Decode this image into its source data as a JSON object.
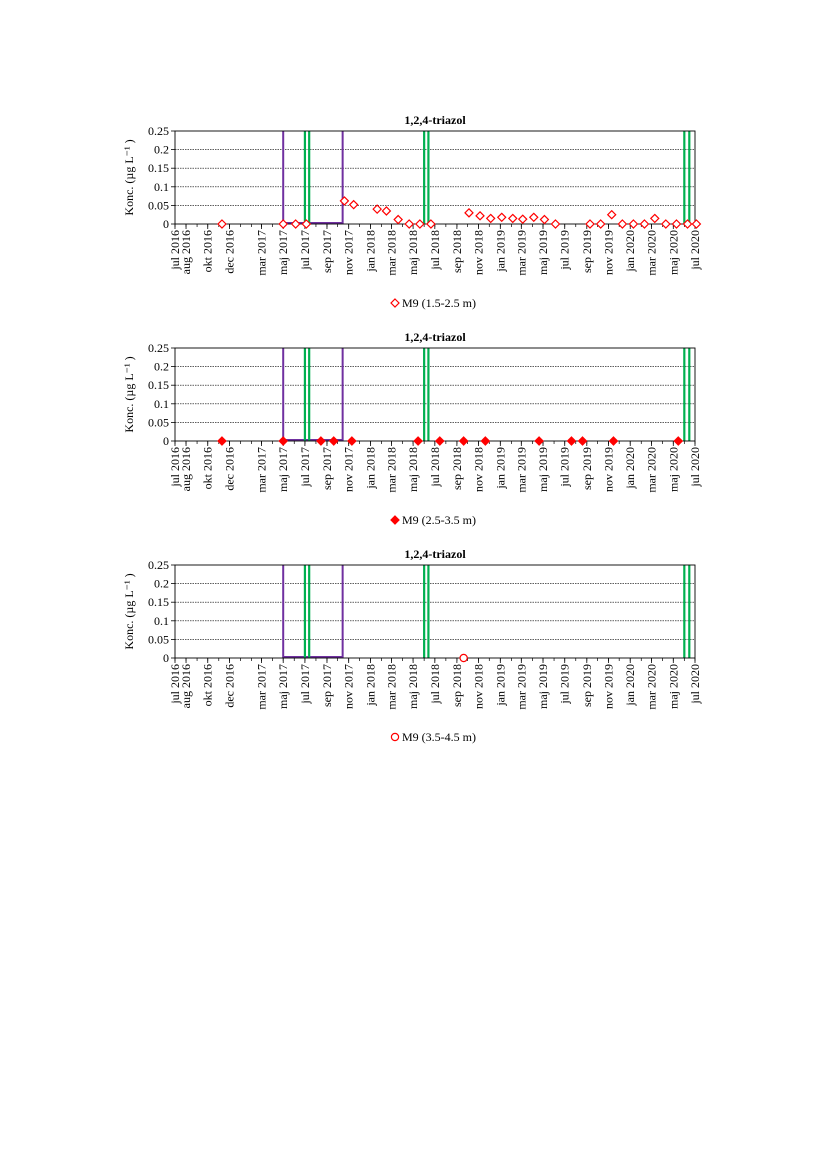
{
  "chart_data": [
    {
      "type": "scatter",
      "title": "1,2,4-triazol",
      "ylabel": "Konc. (µg L⁻¹ )",
      "ylim": [
        0,
        0.25
      ],
      "yticks": [
        "0",
        "0.05",
        "0.1",
        "0.15",
        "0.2",
        "0.25"
      ],
      "xticks": [
        "jul 2016",
        "aug 2016",
        "okt 2016",
        "dec 2016",
        "mar 2017",
        "maj 2017",
        "jul 2017",
        "sep 2017",
        "nov 2017",
        "jan 2018",
        "mar 2018",
        "maj 2018",
        "jul 2018",
        "sep 2018",
        "nov 2018",
        "jan 2019",
        "mar 2019",
        "maj 2019",
        "jul 2019",
        "sep 2019",
        "nov 2019",
        "jan 2020",
        "mar 2020",
        "maj 2020",
        "jul 2020"
      ],
      "xlim": [
        "2016-07-01",
        "2020-07-01"
      ],
      "grid": "horizontal",
      "legend_position": "bottom",
      "markers": {
        "purple": [
          "2017-05-01",
          "2017-10-15"
        ],
        "green": [
          "2017-07-01",
          "2017-07-13",
          "2018-06-01",
          "2018-06-13",
          "2020-06-01",
          "2020-06-15"
        ],
        "purple_color": "#7030a0",
        "green_color": "#00b050"
      },
      "series": [
        {
          "name": "M9 (1.5-2.5 m)",
          "marker": "diamond-open",
          "color": "#ff0000",
          "points": [
            {
              "x": "2016-11-10",
              "y": 0
            },
            {
              "x": "2017-05-01",
              "y": 0
            },
            {
              "x": "2017-06-05",
              "y": 0
            },
            {
              "x": "2017-07-05",
              "y": 0
            },
            {
              "x": "2017-10-20",
              "y": 0.062
            },
            {
              "x": "2017-11-15",
              "y": 0.052
            },
            {
              "x": "2018-01-20",
              "y": 0.04
            },
            {
              "x": "2018-02-15",
              "y": 0.035
            },
            {
              "x": "2018-03-20",
              "y": 0.012
            },
            {
              "x": "2018-04-20",
              "y": 0
            },
            {
              "x": "2018-05-20",
              "y": 0
            },
            {
              "x": "2018-06-20",
              "y": 0
            },
            {
              "x": "2018-10-05",
              "y": 0.03
            },
            {
              "x": "2018-11-05",
              "y": 0.022
            },
            {
              "x": "2018-12-05",
              "y": 0.015
            },
            {
              "x": "2019-01-05",
              "y": 0.018
            },
            {
              "x": "2019-02-05",
              "y": 0.015
            },
            {
              "x": "2019-03-05",
              "y": 0.013
            },
            {
              "x": "2019-04-05",
              "y": 0.018
            },
            {
              "x": "2019-05-05",
              "y": 0.012
            },
            {
              "x": "2019-06-05",
              "y": 0
            },
            {
              "x": "2019-09-10",
              "y": 0
            },
            {
              "x": "2019-10-10",
              "y": 0
            },
            {
              "x": "2019-11-10",
              "y": 0.025
            },
            {
              "x": "2019-12-10",
              "y": 0
            },
            {
              "x": "2020-01-10",
              "y": 0
            },
            {
              "x": "2020-02-10",
              "y": 0
            },
            {
              "x": "2020-03-10",
              "y": 0.015
            },
            {
              "x": "2020-04-10",
              "y": 0
            },
            {
              "x": "2020-05-10",
              "y": 0
            },
            {
              "x": "2020-06-10",
              "y": 0
            },
            {
              "x": "2020-07-05",
              "y": 0
            }
          ]
        }
      ]
    },
    {
      "type": "scatter",
      "title": "1,2,4-triazol",
      "ylabel": "Konc. (µg L⁻¹ )",
      "ylim": [
        0,
        0.25
      ],
      "yticks": [
        "0",
        "0.05",
        "0.1",
        "0.15",
        "0.2",
        "0.25"
      ],
      "xticks": [
        "jul 2016",
        "aug 2016",
        "okt 2016",
        "dec 2016",
        "mar 2017",
        "maj 2017",
        "jul 2017",
        "sep 2017",
        "nov 2017",
        "jan 2018",
        "mar 2018",
        "maj 2018",
        "jul 2018",
        "sep 2018",
        "nov 2018",
        "jan 2019",
        "mar 2019",
        "maj 2019",
        "jul 2019",
        "sep 2019",
        "nov 2019",
        "jan 2020",
        "mar 2020",
        "maj 2020",
        "jul 2020"
      ],
      "xlim": [
        "2016-07-01",
        "2020-07-01"
      ],
      "grid": "horizontal",
      "legend_position": "bottom",
      "markers": {
        "purple": [
          "2017-05-01",
          "2017-10-15"
        ],
        "green": [
          "2017-07-01",
          "2017-07-13",
          "2018-06-01",
          "2018-06-13",
          "2020-06-01",
          "2020-06-15"
        ],
        "purple_color": "#7030a0",
        "green_color": "#00b050"
      },
      "series": [
        {
          "name": "M9 (2.5-3.5 m)",
          "marker": "diamond-filled",
          "color": "#ff0000",
          "points": [
            {
              "x": "2016-11-10",
              "y": 0
            },
            {
              "x": "2017-05-01",
              "y": 0
            },
            {
              "x": "2017-08-15",
              "y": 0
            },
            {
              "x": "2017-09-20",
              "y": 0
            },
            {
              "x": "2017-11-10",
              "y": 0
            },
            {
              "x": "2018-05-15",
              "y": 0
            },
            {
              "x": "2018-07-15",
              "y": 0
            },
            {
              "x": "2018-09-20",
              "y": 0
            },
            {
              "x": "2018-11-20",
              "y": 0
            },
            {
              "x": "2019-04-20",
              "y": 0
            },
            {
              "x": "2019-07-20",
              "y": 0
            },
            {
              "x": "2019-08-20",
              "y": 0
            },
            {
              "x": "2019-11-15",
              "y": 0
            },
            {
              "x": "2020-05-15",
              "y": 0
            }
          ]
        }
      ]
    },
    {
      "type": "scatter",
      "title": "1,2,4-triazol",
      "ylabel": "Konc. (µg L⁻¹ )",
      "ylim": [
        0,
        0.25
      ],
      "yticks": [
        "0",
        "0.05",
        "0.1",
        "0.15",
        "0.2",
        "0.25"
      ],
      "xticks": [
        "jul 2016",
        "aug 2016",
        "okt 2016",
        "dec 2016",
        "mar 2017",
        "maj 2017",
        "jul 2017",
        "sep 2017",
        "nov 2017",
        "jan 2018",
        "mar 2018",
        "maj 2018",
        "jul 2018",
        "sep 2018",
        "nov 2018",
        "jan 2019",
        "mar 2019",
        "maj 2019",
        "jul 2019",
        "sep 2019",
        "nov 2019",
        "jan 2020",
        "mar 2020",
        "maj 2020",
        "jul 2020"
      ],
      "xlim": [
        "2016-07-01",
        "2020-07-01"
      ],
      "grid": "horizontal",
      "legend_position": "bottom",
      "markers": {
        "purple": [
          "2017-05-01",
          "2017-10-15"
        ],
        "green": [
          "2017-07-01",
          "2017-07-13",
          "2018-06-01",
          "2018-06-13",
          "2020-06-01",
          "2020-06-15"
        ],
        "purple_color": "#7030a0",
        "green_color": "#00b050"
      },
      "series": [
        {
          "name": "M9 (3.5-4.5 m)",
          "marker": "circle-open",
          "color": "#ff0000",
          "points": [
            {
              "x": "2018-09-20",
              "y": 0
            }
          ]
        }
      ]
    }
  ]
}
